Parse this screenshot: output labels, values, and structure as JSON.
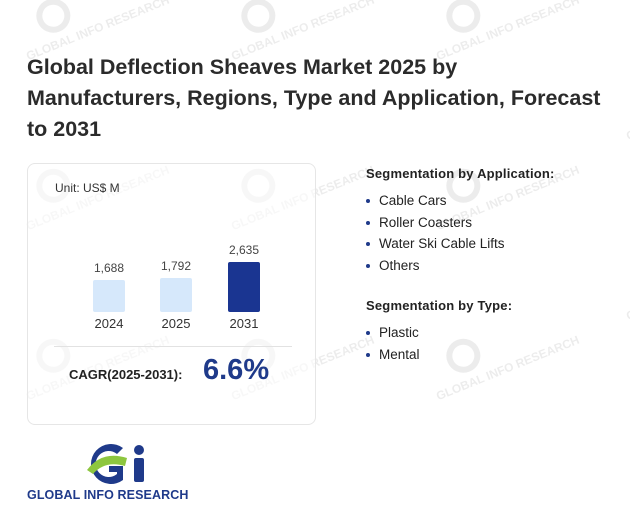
{
  "title": "Global Deflection Sheaves Market 2025 by Manufacturers, Regions, Type and Application, Forecast to 2031",
  "chart_data": {
    "type": "bar",
    "unit_label": "Unit: US$ M",
    "categories": [
      "2024",
      "2025",
      "2031"
    ],
    "values": [
      1688,
      1792,
      2635
    ],
    "value_labels": [
      "1,688",
      "1,792",
      "2,635"
    ],
    "bar_colors": [
      "#d6e8fb",
      "#d6e8fb",
      "#1a3591"
    ],
    "ylim": [
      0,
      2635
    ]
  },
  "cagr": {
    "label": "CAGR(2025-2031):",
    "value": "6.6%"
  },
  "segmentation_application": {
    "title": "Segmentation by Application:",
    "items": [
      "Cable Cars",
      "Roller Coasters",
      "Water Ski Cable Lifts",
      "Others"
    ]
  },
  "segmentation_type": {
    "title": "Segmentation by Type:",
    "items": [
      "Plastic",
      "Mental"
    ]
  },
  "logo": {
    "text": "GLOBAL INFO RESEARCH",
    "watermark_text": "GLOBAL INFO RESEARCH"
  },
  "colors": {
    "accent": "#1f3a8a",
    "logo_green": "#8dc63f",
    "bar_light": "#d6e8fb",
    "bar_dark": "#1a3591"
  }
}
